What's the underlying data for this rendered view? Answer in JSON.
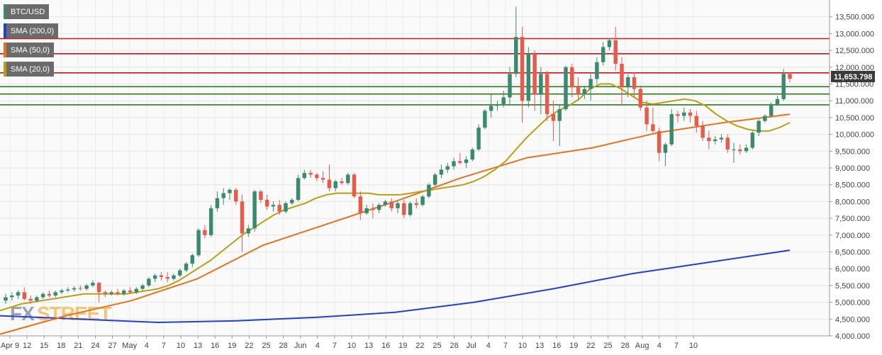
{
  "legend": {
    "pair": {
      "label": "BTC/USD",
      "color": "#3a8a6e"
    },
    "sma200": {
      "label": "SMA (200,0)",
      "color": "#1f3fd6"
    },
    "sma50": {
      "label": "SMA (50,0)",
      "color": "#e8721c"
    },
    "sma20": {
      "label": "SMA (20,0)",
      "color": "#b8a012"
    }
  },
  "watermark": {
    "part1": "FX",
    "part2": "STREET"
  },
  "colors": {
    "up": "#3a8a6e",
    "down": "#e85a4a",
    "resistance": "#dd1111",
    "support": "#2f7a1a",
    "sma200": "#1f3fd6",
    "sma50": "#e8721c",
    "sma20": "#b8a012"
  },
  "chart_data": {
    "type": "candlestick",
    "title": "",
    "xlabel": "",
    "ylabel": "",
    "ylim": [
      4000000,
      13800000
    ],
    "grid": true,
    "legend_position": "top-left",
    "y_ticks": [
      "4,000.000",
      "4,500.000",
      "5,000.000",
      "5,500.000",
      "6,000.000",
      "6,500.000",
      "7,000.000",
      "7,500.000",
      "8,000.000",
      "8,500.000",
      "9,000.000",
      "9,500.000",
      "10,000.000",
      "10,500.000",
      "11,000.000",
      "11,500.000",
      "12,000.000",
      "12,500.000",
      "13,000.000",
      "13,500.000"
    ],
    "y_tick_values": [
      4000000,
      4500000,
      5000000,
      5500000,
      6000000,
      6500000,
      7000000,
      7500000,
      8000000,
      8500000,
      9000000,
      9500000,
      10000000,
      10500000,
      11000000,
      11500000,
      12000000,
      12500000,
      13000000,
      13500000
    ],
    "x_tick_labels": [
      "Apr 9",
      "12",
      "15",
      "18",
      "21",
      "24",
      "27",
      "May",
      "4",
      "7",
      "10",
      "13",
      "16",
      "19",
      "22",
      "25",
      "28",
      "Jun",
      "4",
      "7",
      "10",
      "13",
      "16",
      "19",
      "22",
      "25",
      "28",
      "Jul",
      "4",
      "7",
      "10",
      "13",
      "16",
      "19",
      "22",
      "25",
      "28",
      "Aug",
      "4",
      "7",
      "10"
    ],
    "current_price": "11,653.798",
    "horizontal_levels": [
      {
        "kind": "resistance",
        "value": 12850000
      },
      {
        "kind": "resistance",
        "value": 12400000
      },
      {
        "kind": "resistance",
        "value": 11830000
      },
      {
        "kind": "support",
        "value": 11420000
      },
      {
        "kind": "support",
        "value": 11200000
      },
      {
        "kind": "support",
        "value": 10880000
      }
    ],
    "candles": [
      {
        "o": 5050000,
        "h": 5250000,
        "l": 4950000,
        "c": 5150000
      },
      {
        "o": 5150000,
        "h": 5300000,
        "l": 5050000,
        "c": 5200000
      },
      {
        "o": 5200000,
        "h": 5350000,
        "l": 5100000,
        "c": 5300000
      },
      {
        "o": 5300000,
        "h": 5450000,
        "l": 5050000,
        "c": 5100000
      },
      {
        "o": 5100000,
        "h": 5200000,
        "l": 4950000,
        "c": 5050000
      },
      {
        "o": 5050000,
        "h": 5200000,
        "l": 5000000,
        "c": 5150000
      },
      {
        "o": 5150000,
        "h": 5300000,
        "l": 5100000,
        "c": 5250000
      },
      {
        "o": 5250000,
        "h": 5350000,
        "l": 5150000,
        "c": 5200000
      },
      {
        "o": 5200000,
        "h": 5350000,
        "l": 5150000,
        "c": 5300000
      },
      {
        "o": 5300000,
        "h": 5400000,
        "l": 5250000,
        "c": 5350000
      },
      {
        "o": 5350000,
        "h": 5450000,
        "l": 5300000,
        "c": 5380000
      },
      {
        "o": 5380000,
        "h": 5480000,
        "l": 5320000,
        "c": 5420000
      },
      {
        "o": 5420000,
        "h": 5500000,
        "l": 5350000,
        "c": 5400000
      },
      {
        "o": 5400000,
        "h": 5550000,
        "l": 5350000,
        "c": 5500000
      },
      {
        "o": 5500000,
        "h": 5650000,
        "l": 5450000,
        "c": 5580000
      },
      {
        "o": 5580000,
        "h": 5600000,
        "l": 5000000,
        "c": 5300000
      },
      {
        "o": 5300000,
        "h": 5350000,
        "l": 5150000,
        "c": 5250000
      },
      {
        "o": 5250000,
        "h": 5350000,
        "l": 5200000,
        "c": 5300000
      },
      {
        "o": 5300000,
        "h": 5400000,
        "l": 5200000,
        "c": 5250000
      },
      {
        "o": 5250000,
        "h": 5400000,
        "l": 5200000,
        "c": 5350000
      },
      {
        "o": 5350000,
        "h": 5450000,
        "l": 5250000,
        "c": 5300000
      },
      {
        "o": 5300000,
        "h": 5450000,
        "l": 5250000,
        "c": 5400000
      },
      {
        "o": 5400000,
        "h": 5550000,
        "l": 5350000,
        "c": 5500000
      },
      {
        "o": 5500000,
        "h": 5750000,
        "l": 5450000,
        "c": 5700000
      },
      {
        "o": 5700000,
        "h": 5850000,
        "l": 5600000,
        "c": 5800000
      },
      {
        "o": 5800000,
        "h": 5900000,
        "l": 5650000,
        "c": 5750000
      },
      {
        "o": 5750000,
        "h": 5900000,
        "l": 5600000,
        "c": 5700000
      },
      {
        "o": 5700000,
        "h": 5850000,
        "l": 5650000,
        "c": 5800000
      },
      {
        "o": 5800000,
        "h": 6000000,
        "l": 5750000,
        "c": 5950000
      },
      {
        "o": 5950000,
        "h": 6200000,
        "l": 5900000,
        "c": 6150000
      },
      {
        "o": 6150000,
        "h": 6450000,
        "l": 6050000,
        "c": 6400000
      },
      {
        "o": 6400000,
        "h": 7200000,
        "l": 6350000,
        "c": 7150000
      },
      {
        "o": 7150000,
        "h": 7300000,
        "l": 6900000,
        "c": 7000000
      },
      {
        "o": 7000000,
        "h": 7900000,
        "l": 6950000,
        "c": 7800000
      },
      {
        "o": 7800000,
        "h": 8300000,
        "l": 7700000,
        "c": 8100000
      },
      {
        "o": 8100000,
        "h": 8400000,
        "l": 7900000,
        "c": 8250000
      },
      {
        "o": 8250000,
        "h": 8400000,
        "l": 8050000,
        "c": 8350000
      },
      {
        "o": 8350000,
        "h": 8400000,
        "l": 7900000,
        "c": 8000000
      },
      {
        "o": 8000000,
        "h": 8200000,
        "l": 6500000,
        "c": 7050000
      },
      {
        "o": 7050000,
        "h": 7300000,
        "l": 6950000,
        "c": 7200000
      },
      {
        "o": 7200000,
        "h": 8350000,
        "l": 7100000,
        "c": 8300000
      },
      {
        "o": 8300000,
        "h": 8350000,
        "l": 7950000,
        "c": 8050000
      },
      {
        "o": 8050000,
        "h": 8200000,
        "l": 7750000,
        "c": 7850000
      },
      {
        "o": 7850000,
        "h": 8000000,
        "l": 7700000,
        "c": 7900000
      },
      {
        "o": 7900000,
        "h": 8050000,
        "l": 7600000,
        "c": 7700000
      },
      {
        "o": 7700000,
        "h": 8000000,
        "l": 7650000,
        "c": 7950000
      },
      {
        "o": 7950000,
        "h": 8100000,
        "l": 7900000,
        "c": 8050000
      },
      {
        "o": 8050000,
        "h": 8800000,
        "l": 8000000,
        "c": 8700000
      },
      {
        "o": 8700000,
        "h": 8950000,
        "l": 8650000,
        "c": 8850000
      },
      {
        "o": 8850000,
        "h": 8950000,
        "l": 8700000,
        "c": 8800000
      },
      {
        "o": 8800000,
        "h": 8850000,
        "l": 8600000,
        "c": 8700000
      },
      {
        "o": 8700000,
        "h": 8900000,
        "l": 8550000,
        "c": 8650000
      },
      {
        "o": 8650000,
        "h": 9100000,
        "l": 8300000,
        "c": 8400000
      },
      {
        "o": 8400000,
        "h": 8650000,
        "l": 8300000,
        "c": 8600000
      },
      {
        "o": 8600000,
        "h": 8700000,
        "l": 8500000,
        "c": 8550000
      },
      {
        "o": 8550000,
        "h": 8850000,
        "l": 8500000,
        "c": 8800000
      },
      {
        "o": 8800000,
        "h": 8850000,
        "l": 8100000,
        "c": 8150000
      },
      {
        "o": 8150000,
        "h": 8300000,
        "l": 7450000,
        "c": 7650000
      },
      {
        "o": 7650000,
        "h": 7900000,
        "l": 7600000,
        "c": 7800000
      },
      {
        "o": 7800000,
        "h": 7950000,
        "l": 7500000,
        "c": 7750000
      },
      {
        "o": 7750000,
        "h": 7950000,
        "l": 7650000,
        "c": 7900000
      },
      {
        "o": 7900000,
        "h": 8050000,
        "l": 7850000,
        "c": 8000000
      },
      {
        "o": 8000000,
        "h": 8100000,
        "l": 7700000,
        "c": 7800000
      },
      {
        "o": 7800000,
        "h": 8000000,
        "l": 7650000,
        "c": 7950000
      },
      {
        "o": 7950000,
        "h": 8050000,
        "l": 7500000,
        "c": 7600000
      },
      {
        "o": 7600000,
        "h": 8000000,
        "l": 7550000,
        "c": 7950000
      },
      {
        "o": 7950000,
        "h": 8100000,
        "l": 7800000,
        "c": 7900000
      },
      {
        "o": 7900000,
        "h": 8200000,
        "l": 7850000,
        "c": 8150000
      },
      {
        "o": 8150000,
        "h": 8550000,
        "l": 8100000,
        "c": 8500000
      },
      {
        "o": 8500000,
        "h": 8850000,
        "l": 8450000,
        "c": 8800000
      },
      {
        "o": 8800000,
        "h": 9100000,
        "l": 8700000,
        "c": 8950000
      },
      {
        "o": 8950000,
        "h": 9150000,
        "l": 8850000,
        "c": 9050000
      },
      {
        "o": 9050000,
        "h": 9300000,
        "l": 8950000,
        "c": 9200000
      },
      {
        "o": 9200000,
        "h": 9450000,
        "l": 9100000,
        "c": 9150000
      },
      {
        "o": 9150000,
        "h": 9350000,
        "l": 9000000,
        "c": 9250000
      },
      {
        "o": 9250000,
        "h": 9600000,
        "l": 9200000,
        "c": 9550000
      },
      {
        "o": 9550000,
        "h": 10300000,
        "l": 9500000,
        "c": 10200000
      },
      {
        "o": 10200000,
        "h": 10750000,
        "l": 10150000,
        "c": 10700000
      },
      {
        "o": 10700000,
        "h": 11200000,
        "l": 10500000,
        "c": 10850000
      },
      {
        "o": 10850000,
        "h": 11000000,
        "l": 10700000,
        "c": 10900000
      },
      {
        "o": 10900000,
        "h": 11300000,
        "l": 10800000,
        "c": 11100000
      },
      {
        "o": 11100000,
        "h": 12000000,
        "l": 10900000,
        "c": 11800000
      },
      {
        "o": 11800000,
        "h": 13800000,
        "l": 11700000,
        "c": 12900000
      },
      {
        "o": 12900000,
        "h": 13200000,
        "l": 10350000,
        "c": 11000000
      },
      {
        "o": 11000000,
        "h": 12600000,
        "l": 10800000,
        "c": 12400000
      },
      {
        "o": 12400000,
        "h": 12500000,
        "l": 10700000,
        "c": 11200000
      },
      {
        "o": 11200000,
        "h": 12000000,
        "l": 10600000,
        "c": 11800000
      },
      {
        "o": 11800000,
        "h": 11900000,
        "l": 10400000,
        "c": 10600000
      },
      {
        "o": 10600000,
        "h": 11000000,
        "l": 9800000,
        "c": 10400000
      },
      {
        "o": 10400000,
        "h": 10900000,
        "l": 9650000,
        "c": 10750000
      },
      {
        "o": 10750000,
        "h": 12050000,
        "l": 10700000,
        "c": 12000000
      },
      {
        "o": 12000000,
        "h": 12100000,
        "l": 11100000,
        "c": 11400000
      },
      {
        "o": 11400000,
        "h": 11700000,
        "l": 11000000,
        "c": 11200000
      },
      {
        "o": 11200000,
        "h": 11450000,
        "l": 11050000,
        "c": 11350000
      },
      {
        "o": 11350000,
        "h": 11800000,
        "l": 11000000,
        "c": 11650000
      },
      {
        "o": 11650000,
        "h": 12300000,
        "l": 11500000,
        "c": 12150000
      },
      {
        "o": 12150000,
        "h": 12750000,
        "l": 12050000,
        "c": 12600000
      },
      {
        "o": 12600000,
        "h": 12850000,
        "l": 12500000,
        "c": 12800000
      },
      {
        "o": 12800000,
        "h": 13200000,
        "l": 11900000,
        "c": 12100000
      },
      {
        "o": 12100000,
        "h": 12300000,
        "l": 10900000,
        "c": 11400000
      },
      {
        "o": 11400000,
        "h": 11800000,
        "l": 11100000,
        "c": 11700000
      },
      {
        "o": 11700000,
        "h": 11850000,
        "l": 11100000,
        "c": 11350000
      },
      {
        "o": 11350000,
        "h": 11450000,
        "l": 10700000,
        "c": 10800000
      },
      {
        "o": 10800000,
        "h": 11000000,
        "l": 10100000,
        "c": 10300000
      },
      {
        "o": 10300000,
        "h": 10800000,
        "l": 10050000,
        "c": 10100000
      },
      {
        "o": 10100000,
        "h": 10200000,
        "l": 9200000,
        "c": 9450000
      },
      {
        "o": 9450000,
        "h": 9750000,
        "l": 9050000,
        "c": 9700000
      },
      {
        "o": 9700000,
        "h": 10750000,
        "l": 9650000,
        "c": 10600000
      },
      {
        "o": 10600000,
        "h": 10700000,
        "l": 10350000,
        "c": 10550000
      },
      {
        "o": 10550000,
        "h": 10800000,
        "l": 10400000,
        "c": 10650000
      },
      {
        "o": 10650000,
        "h": 10750000,
        "l": 10350000,
        "c": 10550000
      },
      {
        "o": 10550000,
        "h": 10700000,
        "l": 10050000,
        "c": 10250000
      },
      {
        "o": 10250000,
        "h": 10400000,
        "l": 9800000,
        "c": 9900000
      },
      {
        "o": 9900000,
        "h": 10100000,
        "l": 9550000,
        "c": 9800000
      },
      {
        "o": 9800000,
        "h": 9950000,
        "l": 9700000,
        "c": 9850000
      },
      {
        "o": 9850000,
        "h": 10000000,
        "l": 9750000,
        "c": 9900000
      },
      {
        "o": 9900000,
        "h": 10000000,
        "l": 9450000,
        "c": 9550000
      },
      {
        "o": 9550000,
        "h": 9750000,
        "l": 9150000,
        "c": 9550000
      },
      {
        "o": 9550000,
        "h": 9700000,
        "l": 9400000,
        "c": 9500000
      },
      {
        "o": 9500000,
        "h": 9700000,
        "l": 9450000,
        "c": 9600000
      },
      {
        "o": 9600000,
        "h": 10100000,
        "l": 9550000,
        "c": 10050000
      },
      {
        "o": 10050000,
        "h": 10450000,
        "l": 9950000,
        "c": 10400000
      },
      {
        "o": 10400000,
        "h": 10600000,
        "l": 10350000,
        "c": 10550000
      },
      {
        "o": 10550000,
        "h": 10950000,
        "l": 10500000,
        "c": 10900000
      },
      {
        "o": 10900000,
        "h": 11150000,
        "l": 10850000,
        "c": 11050000
      },
      {
        "o": 11050000,
        "h": 11950000,
        "l": 11000000,
        "c": 11800000
      },
      {
        "o": 11800000,
        "h": 11850000,
        "l": 11550000,
        "c": 11653798
      }
    ],
    "sma20": [
      4750000,
      4850000,
      4950000,
      5000000,
      5050000,
      5100000,
      5150000,
      5200000,
      5250000,
      5250000,
      5250000,
      5250000,
      5250000,
      5300000,
      5350000,
      5400000,
      5500000,
      5650000,
      5850000,
      6050000,
      6250000,
      6500000,
      6750000,
      7000000,
      7200000,
      7400000,
      7600000,
      7750000,
      7850000,
      7950000,
      8100000,
      8200000,
      8250000,
      8250000,
      8250000,
      8250000,
      8200000,
      8200000,
      8200000,
      8250000,
      8300000,
      8350000,
      8400000,
      8450000,
      8500000,
      8600000,
      8750000,
      8950000,
      9200000,
      9550000,
      9900000,
      10200000,
      10500000,
      10700000,
      10850000,
      11050000,
      11350000,
      11500000,
      11500000,
      11350000,
      11150000,
      10950000,
      10900000,
      10950000,
      11000000,
      11050000,
      11000000,
      10850000,
      10600000,
      10400000,
      10250000,
      10150000,
      10100000,
      10100000,
      10200000,
      10350000
    ],
    "sma20_x": [
      0,
      10,
      20,
      30,
      40,
      50,
      60,
      70,
      80,
      90,
      100,
      110,
      120,
      130,
      140,
      150,
      160,
      170,
      180,
      190,
      200,
      210,
      220,
      230,
      240,
      250,
      260,
      270,
      280,
      290,
      300,
      310,
      320,
      330,
      340,
      350,
      360,
      370,
      380,
      390,
      400,
      410,
      420,
      430,
      440,
      450,
      460,
      470,
      480,
      490,
      500,
      510,
      520,
      530,
      540,
      550,
      560,
      570,
      580,
      590,
      600,
      610,
      620,
      630,
      640,
      650,
      660,
      670,
      680,
      690,
      700,
      710,
      720,
      730,
      740,
      750
    ],
    "sma50": [
      4050000,
      4600000,
      5050000,
      5700000,
      6700000,
      7350000,
      8000000,
      8700000,
      9300000,
      9600000,
      10050000,
      10350000,
      10600000
    ],
    "sma200": [
      4600000,
      4500000,
      4400000,
      4450000,
      4550000,
      4700000,
      5000000,
      5400000,
      5850000,
      6200000,
      6550000
    ]
  }
}
